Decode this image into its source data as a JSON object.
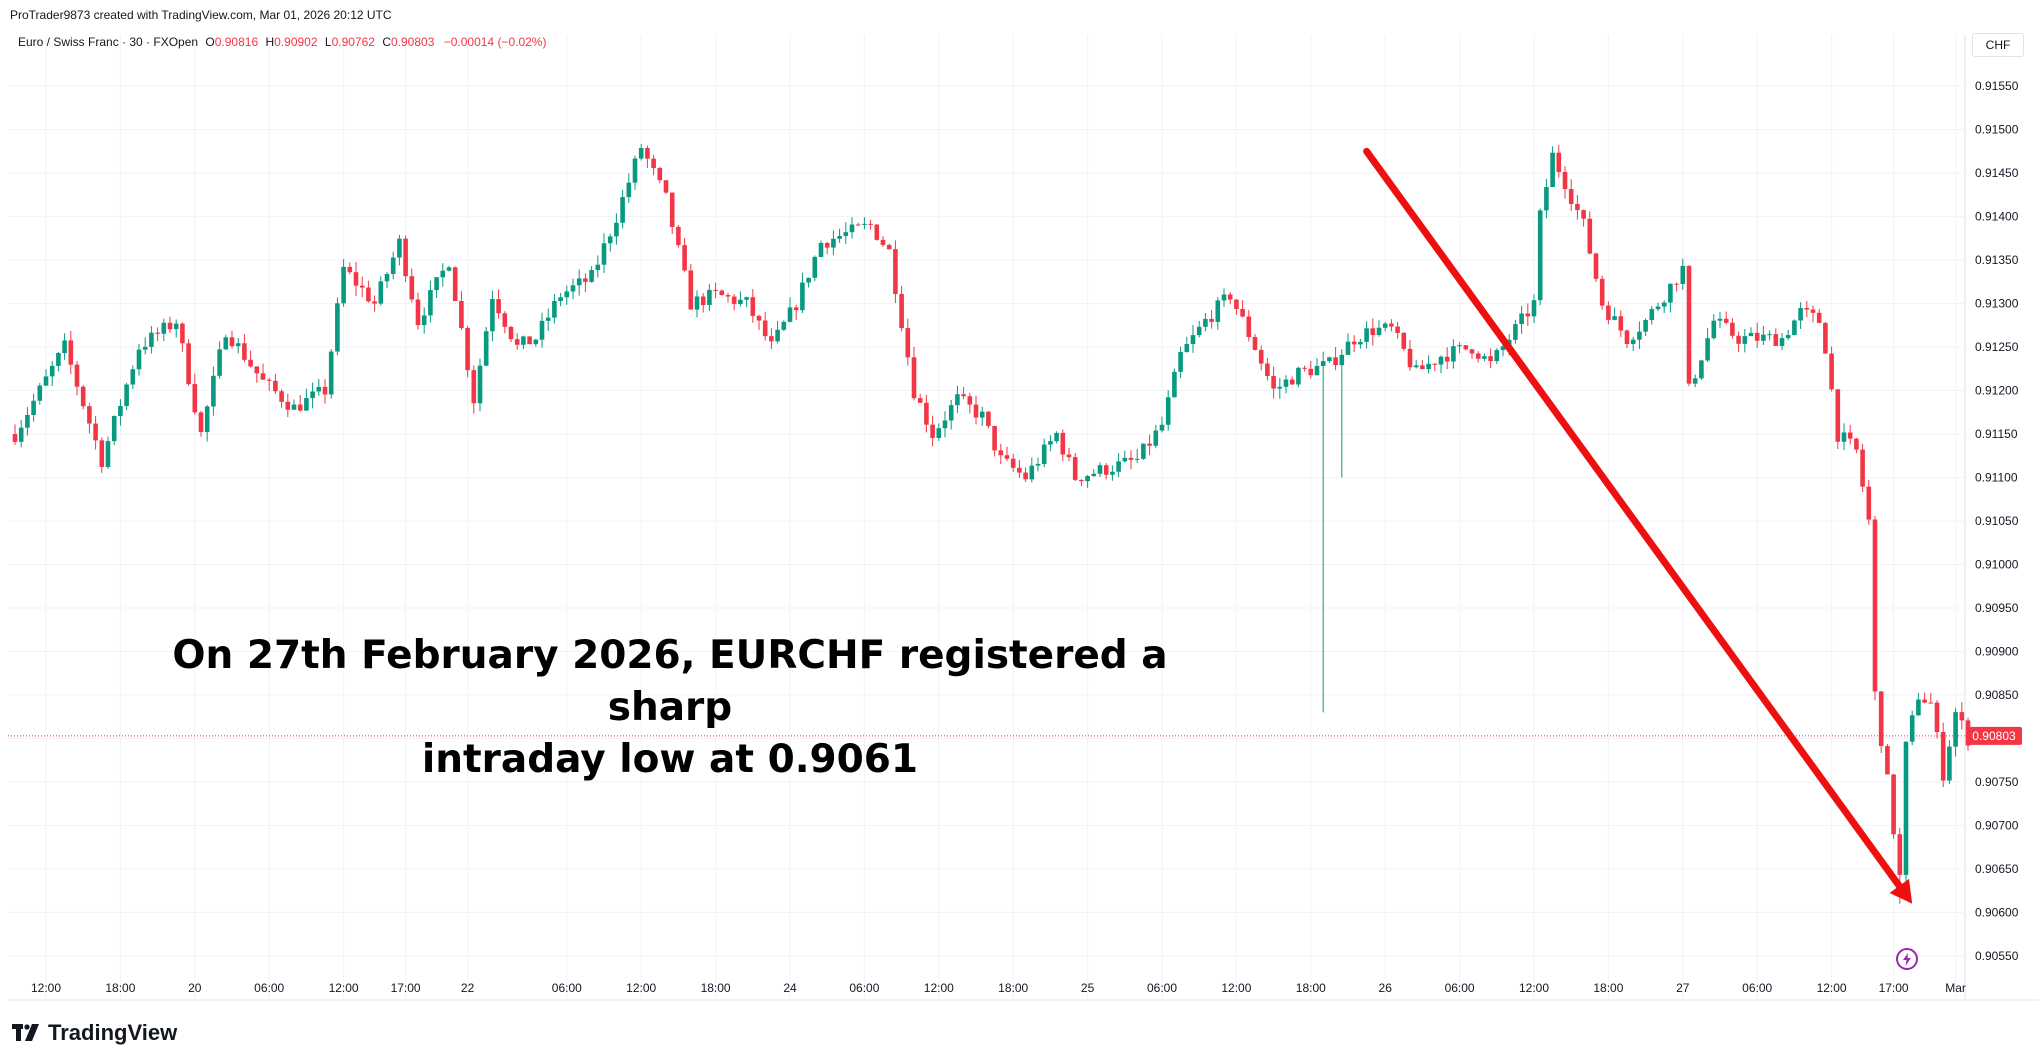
{
  "credit": "ProTrader9873 created with TradingView.com, Mar 01, 2026 20:12 UTC",
  "legend": {
    "symbol": "Euro / Swiss Franc · 30 · FXOpen",
    "o_label": "O",
    "o": "0.90816",
    "h_label": "H",
    "h": "0.90902",
    "l_label": "L",
    "l": "0.90762",
    "c_label": "C",
    "c": "0.90803",
    "change": "−0.00014 (−0.02%)"
  },
  "currency_button": "CHF",
  "annotation": {
    "line1": "On 27th February 2026, EURCHF registered a sharp",
    "line2": "intraday low at 0.9061"
  },
  "brand": "TradingView",
  "chart_data": {
    "type": "candlestick",
    "symbol": "EURCHF",
    "timeframe": "30",
    "ylim": [
      0.9052,
      0.9158
    ],
    "y_ticks": [
      "0.91550",
      "0.91500",
      "0.91450",
      "0.91400",
      "0.91350",
      "0.91300",
      "0.91250",
      "0.91200",
      "0.91150",
      "0.91100",
      "0.91050",
      "0.91000",
      "0.90950",
      "0.90900",
      "0.90850",
      "0.90800",
      "0.90750",
      "0.90700",
      "0.90650",
      "0.90600",
      "0.90550"
    ],
    "x_ticks": [
      {
        "label": "12:00",
        "i": 5
      },
      {
        "label": "18:00",
        "i": 17
      },
      {
        "label": "20",
        "i": 29
      },
      {
        "label": "06:00",
        "i": 41
      },
      {
        "label": "12:00",
        "i": 53
      },
      {
        "label": "17:00",
        "i": 63
      },
      {
        "label": "22",
        "i": 73
      },
      {
        "label": "06:00",
        "i": 89
      },
      {
        "label": "12:00",
        "i": 101
      },
      {
        "label": "18:00",
        "i": 113
      },
      {
        "label": "24",
        "i": 125
      },
      {
        "label": "06:00",
        "i": 137
      },
      {
        "label": "12:00",
        "i": 149
      },
      {
        "label": "18:00",
        "i": 161
      },
      {
        "label": "25",
        "i": 173
      },
      {
        "label": "06:00",
        "i": 185
      },
      {
        "label": "12:00",
        "i": 197
      },
      {
        "label": "18:00",
        "i": 209
      },
      {
        "label": "26",
        "i": 221
      },
      {
        "label": "06:00",
        "i": 233
      },
      {
        "label": "12:00",
        "i": 245
      },
      {
        "label": "18:00",
        "i": 257
      },
      {
        "label": "27",
        "i": 269
      },
      {
        "label": "06:00",
        "i": 281
      },
      {
        "label": "12:00",
        "i": 293
      },
      {
        "label": "17:00",
        "i": 303
      },
      {
        "label": "Mar",
        "i": 313
      }
    ],
    "last_price": "0.90803",
    "path_points": [
      [
        0,
        0.9115
      ],
      [
        8,
        0.9125
      ],
      [
        14,
        0.9112
      ],
      [
        20,
        0.9125
      ],
      [
        26,
        0.9128
      ],
      [
        30,
        0.9115
      ],
      [
        34,
        0.9127
      ],
      [
        40,
        0.9121
      ],
      [
        45,
        0.9118
      ],
      [
        50,
        0.912
      ],
      [
        53,
        0.9134
      ],
      [
        58,
        0.913
      ],
      [
        62,
        0.9137
      ],
      [
        65,
        0.9128
      ],
      [
        70,
        0.9135
      ],
      [
        74,
        0.9119
      ],
      [
        77,
        0.9131
      ],
      [
        81,
        0.9125
      ],
      [
        84,
        0.9126
      ],
      [
        88,
        0.9131
      ],
      [
        93,
        0.9133
      ],
      [
        97,
        0.914
      ],
      [
        101,
        0.9148
      ],
      [
        105,
        0.9142
      ],
      [
        109,
        0.913
      ],
      [
        113,
        0.9131
      ],
      [
        118,
        0.913
      ],
      [
        122,
        0.9125
      ],
      [
        126,
        0.913
      ],
      [
        130,
        0.9137
      ],
      [
        134,
        0.9138
      ],
      [
        138,
        0.9139
      ],
      [
        141,
        0.9136
      ],
      [
        145,
        0.912
      ],
      [
        148,
        0.9115
      ],
      [
        152,
        0.9119
      ],
      [
        156,
        0.9117
      ],
      [
        159,
        0.9112
      ],
      [
        163,
        0.911
      ],
      [
        168,
        0.9115
      ],
      [
        171,
        0.911
      ],
      [
        176,
        0.9111
      ],
      [
        181,
        0.9112
      ],
      [
        185,
        0.9116
      ],
      [
        188,
        0.9124
      ],
      [
        192,
        0.9128
      ],
      [
        196,
        0.9131
      ],
      [
        200,
        0.9125
      ],
      [
        203,
        0.912
      ],
      [
        207,
        0.9122
      ],
      [
        212,
        0.9123
      ],
      [
        216,
        0.9126
      ],
      [
        219,
        0.9127
      ],
      [
        222,
        0.9127
      ],
      [
        226,
        0.9122
      ],
      [
        230,
        0.9124
      ],
      [
        235,
        0.9125
      ],
      [
        238,
        0.9123
      ],
      [
        242,
        0.9127
      ],
      [
        245,
        0.913
      ],
      [
        246,
        0.914
      ],
      [
        248,
        0.9147
      ],
      [
        250,
        0.9144
      ],
      [
        253,
        0.9139
      ],
      [
        256,
        0.913
      ],
      [
        260,
        0.9126
      ],
      [
        263,
        0.9128
      ],
      [
        266,
        0.9131
      ],
      [
        269,
        0.9134
      ],
      [
        270,
        0.912
      ],
      [
        274,
        0.9128
      ],
      [
        278,
        0.9126
      ],
      [
        282,
        0.9126
      ],
      [
        285,
        0.9126
      ],
      [
        288,
        0.9129
      ],
      [
        291,
        0.9128
      ],
      [
        292,
        0.9125
      ],
      [
        294,
        0.9115
      ],
      [
        297,
        0.9113
      ],
      [
        299,
        0.9105
      ],
      [
        300,
        0.9085
      ],
      [
        302,
        0.9075
      ],
      [
        304,
        0.9064
      ],
      [
        305,
        0.9079
      ],
      [
        307,
        0.9085
      ],
      [
        309,
        0.9084
      ],
      [
        311,
        0.9076
      ],
      [
        313,
        0.9083
      ],
      [
        315,
        0.908
      ]
    ],
    "spike_lows": [
      {
        "i": 211,
        "low": 0.9083
      },
      {
        "i": 214,
        "low": 0.911
      },
      {
        "i": 304,
        "low": 0.9061
      }
    ],
    "arrow": {
      "from_i": 218,
      "from_price": 0.91475,
      "to_i": 306,
      "to_price": 0.9061
    },
    "annotation_text": "On 27th February 2026, EURCHF registered a sharp intraday low at 0.9061"
  },
  "colors": {
    "up": "#089981",
    "down": "#f23645",
    "arrow": "#ee1010",
    "grid": "#f0f3fa",
    "axis_text": "#131722",
    "last_price_bg": "#f23645"
  }
}
